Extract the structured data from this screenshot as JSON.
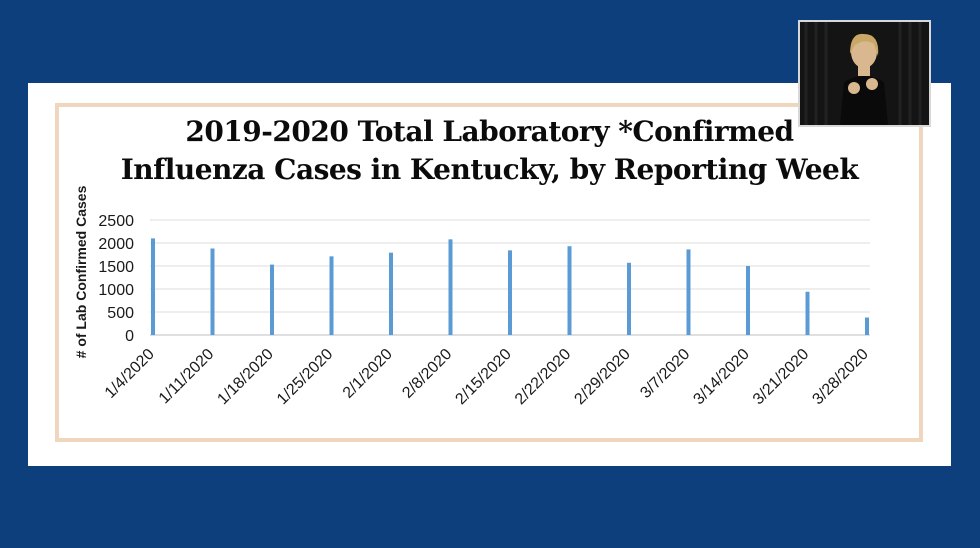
{
  "chart_data": {
    "type": "bar",
    "title_line1": "2019-2020 Total Laboratory *Confirmed",
    "title_line2": "Influenza Cases in Kentucky, by Reporting Week",
    "ylabel": "# of Lab Confirmed Cases",
    "xlabel": "",
    "ylim": [
      0,
      2500
    ],
    "yticks": [
      "0",
      "500",
      "1000",
      "1500",
      "2000",
      "2500"
    ],
    "grid": true,
    "bar_color": "#5b9bd5",
    "categories": [
      "1/4/2020",
      "1/11/2020",
      "1/18/2020",
      "1/25/2020",
      "2/1/2020",
      "2/8/2020",
      "2/15/2020",
      "2/22/2020",
      "2/29/2020",
      "3/7/2020",
      "3/14/2020",
      "3/21/2020",
      "3/28/2020"
    ],
    "values": [
      2100,
      1880,
      1530,
      1710,
      1790,
      2080,
      1840,
      1930,
      1570,
      1860,
      1500,
      940,
      380
    ]
  }
}
